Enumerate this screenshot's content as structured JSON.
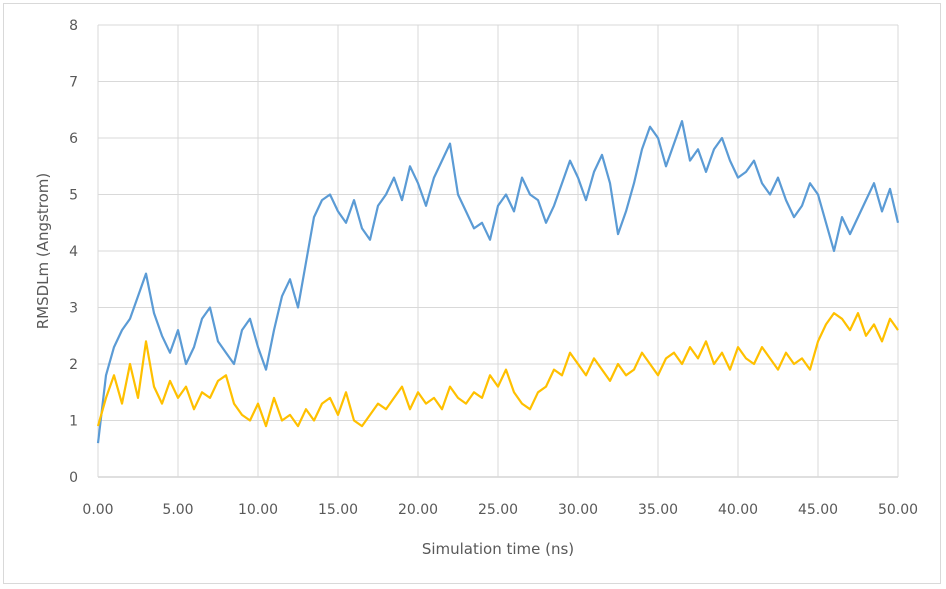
{
  "chart_data": {
    "type": "line",
    "title": "",
    "xlabel": "Simulation time (ns)",
    "ylabel": "RMSDLm (Angstrom)",
    "xlim": [
      0,
      50
    ],
    "ylim": [
      0,
      8
    ],
    "xticks": [
      "0.00",
      "5.00",
      "10.00",
      "15.00",
      "20.00",
      "25.00",
      "30.00",
      "35.00",
      "40.00",
      "45.00",
      "50.00"
    ],
    "yticks": [
      "0",
      "1",
      "2",
      "3",
      "4",
      "5",
      "6",
      "7",
      "8"
    ],
    "grid": {
      "vertical": true,
      "horizontal": true
    },
    "legend": "none",
    "x_step": 0.5,
    "series": [
      {
        "color": "#5b9bd5",
        "values": [
          0.6,
          1.8,
          2.3,
          2.6,
          2.8,
          3.2,
          3.6,
          2.9,
          2.5,
          2.2,
          2.6,
          2.0,
          2.3,
          2.8,
          3.0,
          2.4,
          2.2,
          2.0,
          2.6,
          2.8,
          2.3,
          1.9,
          2.6,
          3.2,
          3.5,
          3.0,
          3.8,
          4.6,
          4.9,
          5.0,
          4.7,
          4.5,
          4.9,
          4.4,
          4.2,
          4.8,
          5.0,
          5.3,
          4.9,
          5.5,
          5.2,
          4.8,
          5.3,
          5.6,
          5.9,
          5.0,
          4.7,
          4.4,
          4.5,
          4.2,
          4.8,
          5.0,
          4.7,
          5.3,
          5.0,
          4.9,
          4.5,
          4.8,
          5.2,
          5.6,
          5.3,
          4.9,
          5.4,
          5.7,
          5.2,
          4.3,
          4.7,
          5.2,
          5.8,
          6.2,
          6.0,
          5.5,
          5.9,
          6.3,
          5.6,
          5.8,
          5.4,
          5.8,
          6.0,
          5.6,
          5.3,
          5.4,
          5.6,
          5.2,
          5.0,
          5.3,
          4.9,
          4.6,
          4.8,
          5.2,
          5.0,
          4.5,
          4.0,
          4.6,
          4.3,
          4.6,
          4.9,
          5.2,
          4.7,
          5.1,
          4.5
        ]
      },
      {
        "color": "#ffc000",
        "values": [
          0.9,
          1.4,
          1.8,
          1.3,
          2.0,
          1.4,
          2.4,
          1.6,
          1.3,
          1.7,
          1.4,
          1.6,
          1.2,
          1.5,
          1.4,
          1.7,
          1.8,
          1.3,
          1.1,
          1.0,
          1.3,
          0.9,
          1.4,
          1.0,
          1.1,
          0.9,
          1.2,
          1.0,
          1.3,
          1.4,
          1.1,
          1.5,
          1.0,
          0.9,
          1.1,
          1.3,
          1.2,
          1.4,
          1.6,
          1.2,
          1.5,
          1.3,
          1.4,
          1.2,
          1.6,
          1.4,
          1.3,
          1.5,
          1.4,
          1.8,
          1.6,
          1.9,
          1.5,
          1.3,
          1.2,
          1.5,
          1.6,
          1.9,
          1.8,
          2.2,
          2.0,
          1.8,
          2.1,
          1.9,
          1.7,
          2.0,
          1.8,
          1.9,
          2.2,
          2.0,
          1.8,
          2.1,
          2.2,
          2.0,
          2.3,
          2.1,
          2.4,
          2.0,
          2.2,
          1.9,
          2.3,
          2.1,
          2.0,
          2.3,
          2.1,
          1.9,
          2.2,
          2.0,
          2.1,
          1.9,
          2.4,
          2.7,
          2.9,
          2.8,
          2.6,
          2.9,
          2.5,
          2.7,
          2.4,
          2.8,
          2.6
        ]
      }
    ]
  }
}
